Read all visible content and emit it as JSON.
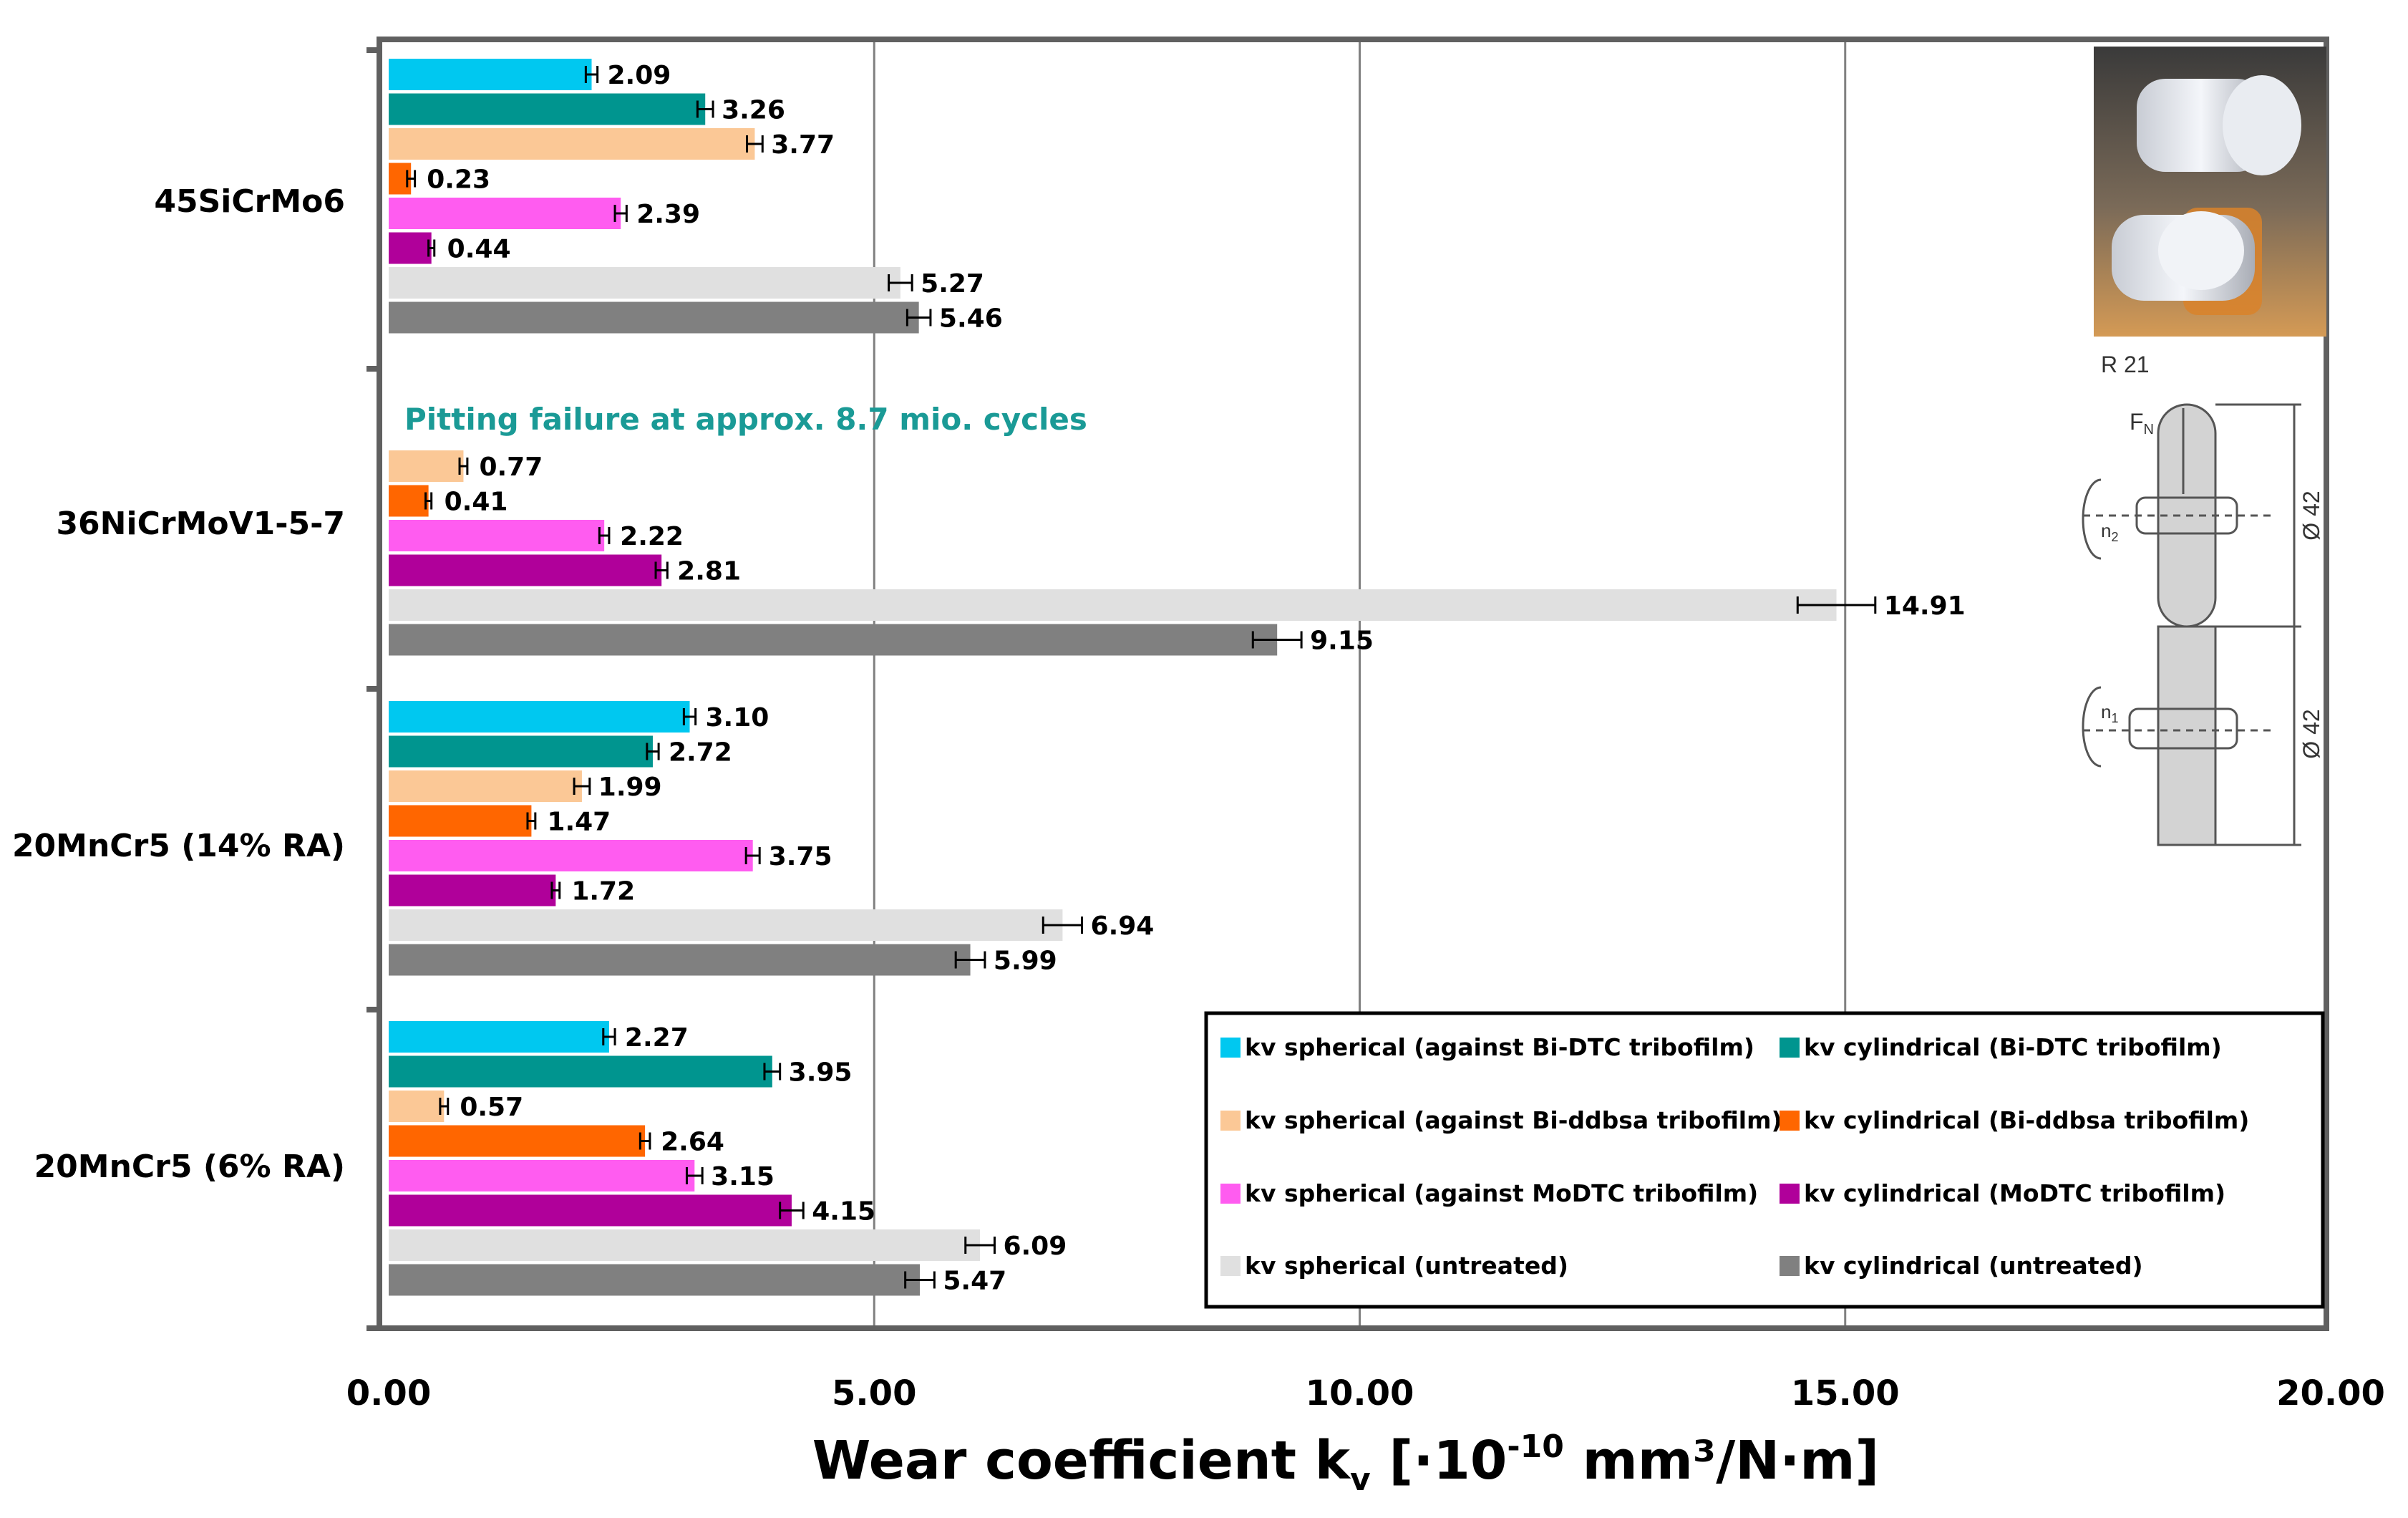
{
  "chart_data": {
    "type": "bar",
    "orientation": "horizontal",
    "xlabel_main": "Wear coefficient k",
    "xlabel_sub": "v",
    "xlabel_rest1": " [·10",
    "xlabel_exp": "-10",
    "xlabel_rest2": " mm³/N·m]",
    "xlim": [
      0,
      20
    ],
    "xticks": [
      "0.00",
      "5.00",
      "10.00",
      "15.00",
      "20.00"
    ],
    "grid": true,
    "legend_position": "bottom-right",
    "annotation": "Pitting failure at approx. 8.7 mio. cycles",
    "diagram_labels": {
      "radius": "R 21",
      "force": "F",
      "force_sub": "N",
      "dia1": "Ø 42",
      "dia2": "Ø 42",
      "n2": "n",
      "n2_sub": "2",
      "n1": "n",
      "n1_sub": "1"
    },
    "series": [
      {
        "name": "kv spherical (against Bi-DTC tribofilm)",
        "color": "#00c8f0"
      },
      {
        "name": "kv cylindrical (Bi-DTC tribofilm)",
        "color": "#00958f"
      },
      {
        "name": "kv spherical (against Bi-ddbsa tribofilm)",
        "color": "#fbc896"
      },
      {
        "name": "kv cylindrical (Bi-ddbsa tribofilm)",
        "color": "#ff6600"
      },
      {
        "name": "kv spherical (against MoDTC tribofilm)",
        "color": "#ff5cf0"
      },
      {
        "name": "kv cylindrical (MoDTC tribofilm)",
        "color": "#b0009a"
      },
      {
        "name": "kv spherical (untreated)",
        "color": "#e0e0e0"
      },
      {
        "name": "kv cylindrical (untreated)",
        "color": "#808080"
      }
    ],
    "groups": [
      {
        "name": "45SiCrMo6",
        "values": [
          2.09,
          3.26,
          3.77,
          0.23,
          2.39,
          0.44,
          5.27,
          5.46
        ],
        "labels": [
          "2.09",
          "3.26",
          "3.77",
          "0.23",
          "2.39",
          "0.44",
          "5.27",
          "5.46"
        ]
      },
      {
        "name": "36NiCrMoV1-5-7",
        "values": [
          null,
          null,
          0.77,
          0.41,
          2.22,
          2.81,
          14.91,
          9.15
        ],
        "labels": [
          "",
          "",
          "0.77",
          "0.41",
          "2.22",
          "2.81",
          "14.91",
          "9.15"
        ]
      },
      {
        "name": "20MnCr5 (14% RA)",
        "values": [
          3.1,
          2.72,
          1.99,
          1.47,
          3.75,
          1.72,
          6.94,
          5.99
        ],
        "labels": [
          "3.10",
          "2.72",
          "1.99",
          "1.47",
          "3.75",
          "1.72",
          "6.94",
          "5.99"
        ]
      },
      {
        "name": "20MnCr5 (6% RA)",
        "values": [
          2.27,
          3.95,
          0.57,
          2.64,
          3.15,
          4.15,
          6.09,
          5.47
        ],
        "labels": [
          "2.27",
          "3.95",
          "0.57",
          "2.64",
          "3.15",
          "4.15",
          "6.09",
          "5.47"
        ]
      }
    ],
    "errors": [
      [
        0.06,
        0.08,
        0.08,
        0.04,
        0.06,
        0.03,
        0.12,
        0.12
      ],
      [
        null,
        null,
        0.04,
        0.03,
        0.05,
        0.06,
        0.4,
        0.25
      ],
      [
        0.06,
        0.06,
        0.08,
        0.04,
        0.07,
        0.04,
        0.2,
        0.15
      ],
      [
        0.06,
        0.08,
        0.04,
        0.05,
        0.08,
        0.12,
        0.15,
        0.15
      ]
    ]
  }
}
